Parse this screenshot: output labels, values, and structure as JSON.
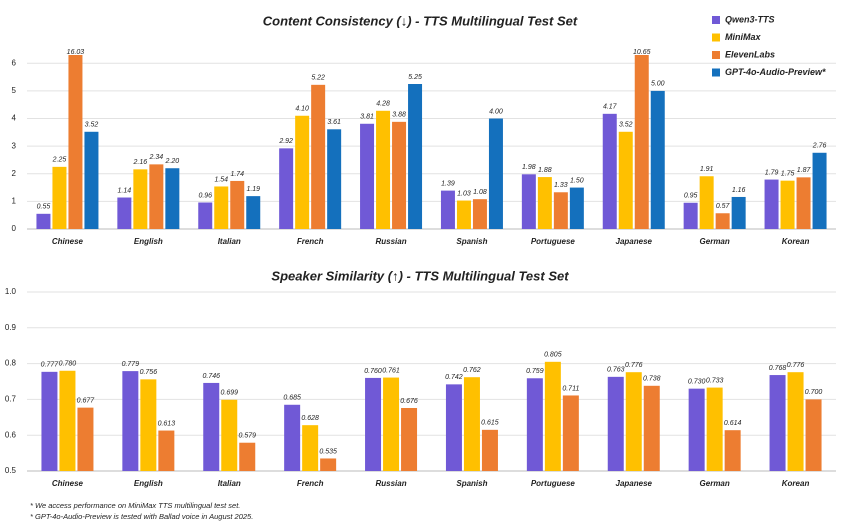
{
  "chart_data": [
    {
      "type": "bar",
      "title": "Content Consistency (↓) - TTS Multilingual Test Set",
      "categories": [
        "Chinese",
        "English",
        "Italian",
        "French",
        "Russian",
        "Spanish",
        "Portuguese",
        "Japanese",
        "German",
        "Korean"
      ],
      "series": [
        {
          "name": "Qwen3-TTS",
          "color": "#7059d6",
          "values": [
            0.55,
            1.14,
            0.96,
            2.92,
            3.81,
            1.39,
            1.98,
            4.17,
            0.95,
            1.79
          ],
          "value_labels": [
            "0.55",
            "1.14",
            "0.96",
            "2.92",
            "3.81",
            "1.39",
            "1.98",
            "4.17",
            "0.95",
            "1.79"
          ]
        },
        {
          "name": "MiniMax",
          "color": "#ffc000",
          "values": [
            2.25,
            2.16,
            1.54,
            4.1,
            4.28,
            1.03,
            1.88,
            3.52,
            1.91,
            1.75
          ],
          "value_labels": [
            "2.25",
            "2.16",
            "1.54",
            "4.10",
            "4.28",
            "1.03",
            "1.88",
            "3.52",
            "1.91",
            "1.75"
          ]
        },
        {
          "name": "ElevenLabs",
          "color": "#ed7d31",
          "values": [
            16.03,
            2.34,
            1.74,
            5.22,
            3.88,
            1.08,
            1.33,
            10.65,
            0.57,
            1.87
          ],
          "value_labels": [
            "16.03",
            "2.34",
            "1.74",
            "5.22",
            "3.88",
            "1.08",
            "1.33",
            "10.65",
            "0.57",
            "1.87"
          ]
        },
        {
          "name": "GPT-4o-Audio-Preview*",
          "color": "#1470bd",
          "values": [
            3.52,
            2.2,
            1.19,
            3.61,
            5.25,
            4.0,
            1.5,
            5.0,
            1.16,
            2.76
          ],
          "value_labels": [
            "3.52",
            "2.20",
            "1.19",
            "3.61",
            "5.25",
            "4.00",
            "1.50",
            "5.00",
            "1.16",
            "2.76"
          ]
        }
      ],
      "ylim": [
        0,
        6.3
      ],
      "yticks": [
        0,
        1,
        2,
        3,
        4,
        5,
        6
      ],
      "grid": true,
      "legend": "top-right"
    },
    {
      "type": "bar",
      "title": "Speaker Similarity (↑) - TTS Multilingual Test Set",
      "categories": [
        "Chinese",
        "English",
        "Italian",
        "French",
        "Russian",
        "Spanish",
        "Portuguese",
        "Japanese",
        "German",
        "Korean"
      ],
      "series": [
        {
          "color": "#7059d6",
          "values": [
            0.777,
            0.779,
            0.746,
            0.685,
            0.76,
            0.742,
            0.759,
            0.763,
            0.73,
            0.768
          ],
          "value_labels": [
            "0.777",
            "0.779",
            "0.746",
            "0.685",
            "0.760",
            "0.742",
            "0.759",
            "0.763",
            "0.730",
            "0.768"
          ]
        },
        {
          "color": "#ffc000",
          "values": [
            0.78,
            0.756,
            0.699,
            0.628,
            0.761,
            0.762,
            0.805,
            0.776,
            0.733,
            0.776
          ],
          "value_labels": [
            "0.780",
            "0.756",
            "0.699",
            "0.628",
            "0.761",
            "0.762",
            "0.805",
            "0.776",
            "0.733",
            "0.776"
          ]
        },
        {
          "color": "#ed7d31",
          "values": [
            0.677,
            0.613,
            0.579,
            0.535,
            0.676,
            0.615,
            0.711,
            0.738,
            0.614,
            0.7
          ],
          "value_labels": [
            "0.677",
            "0.613",
            "0.579",
            "0.535",
            "0.676",
            "0.615",
            "0.711",
            "0.738",
            "0.614",
            "0.700"
          ]
        }
      ],
      "ylim": [
        0.5,
        1.0
      ],
      "yticks": [
        0.5,
        0.6,
        0.7,
        0.8,
        0.9,
        {
          "value": 1.0,
          "label": "1.0"
        }
      ],
      "grid": true
    }
  ],
  "notes": [
    "* We access performance on MiniMax TTS multilingual test set.",
    "* GPT-4o-Audio-Preview is tested with Ballad voice in August 2025."
  ]
}
